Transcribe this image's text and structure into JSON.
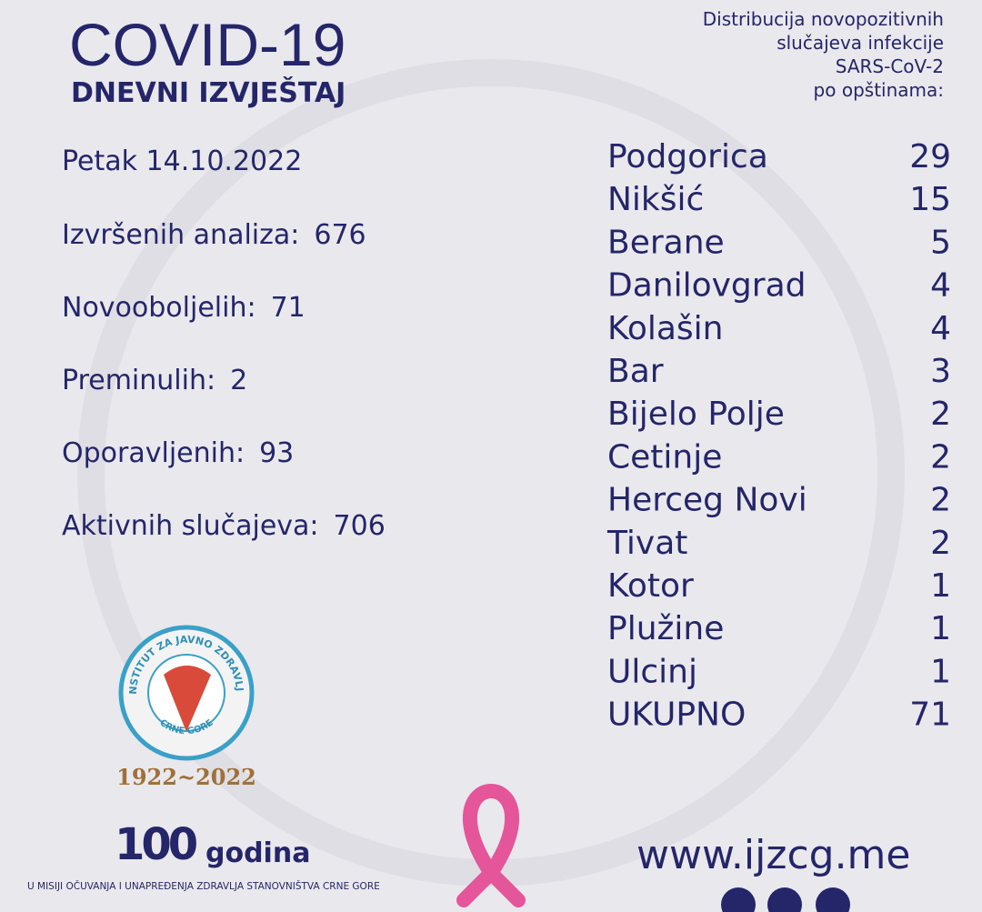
{
  "header": {
    "title": "COVID-19",
    "subtitle": "DNEVNI IZVJEŠTAJ",
    "date": "Petak 14.10.2022"
  },
  "stats": [
    {
      "label": "Izvršenih analiza:",
      "value": 676
    },
    {
      "label": "Novooboljelih:",
      "value": 71
    },
    {
      "label": "Preminulih:",
      "value": 2
    },
    {
      "label": "Oporavljenih:",
      "value": 93
    },
    {
      "label": "Aktivnih slučajeva:",
      "value": 706
    }
  ],
  "distribution": {
    "caption": [
      "Distribucija novopozitivnih",
      "slučajeva infekcije",
      "SARS-CoV-2",
      "po opštinama:"
    ],
    "rows": [
      [
        "Podgorica",
        29
      ],
      [
        "Nikšić",
        15
      ],
      [
        "Berane",
        5
      ],
      [
        "Danilovgrad",
        4
      ],
      [
        "Kolašin",
        4
      ],
      [
        "Bar",
        3
      ],
      [
        "Bijelo Polje",
        2
      ],
      [
        "Cetinje",
        2
      ],
      [
        "Herceg Novi",
        2
      ],
      [
        "Tivat",
        2
      ],
      [
        "Kotor",
        1
      ],
      [
        "Plužine",
        1
      ],
      [
        "Ulcinj",
        1
      ],
      [
        "UKUPNO",
        71
      ]
    ]
  },
  "logo": {
    "ring_top": "INSTITUT ZA JAVNO ZDRAVLJE",
    "ring_bottom": "CRNE GORE",
    "years": "1922~2022"
  },
  "anniversary": {
    "number": "100",
    "word": "godina",
    "tagline": "U MISIJI OČUVANJA I UNAPREĐENJA ZDRAVLJA STANOVNIŠTVA CRNE GORE"
  },
  "website": "www.ijzcg.me"
}
